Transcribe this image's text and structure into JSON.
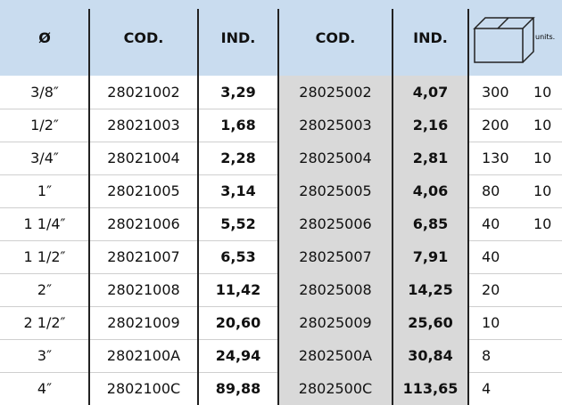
{
  "table": {
    "header": [
      "Ø",
      "COD.",
      "IND.",
      "COD.",
      "IND.",
      "units."
    ],
    "rows": [
      [
        "3/8″",
        "28021002",
        "3,29",
        "28025002",
        "4,07",
        "300",
        "10"
      ],
      [
        "1/2″",
        "28021003",
        "1,68",
        "28025003",
        "2,16",
        "200",
        "10"
      ],
      [
        "3/4″",
        "28021004",
        "2,28",
        "28025004",
        "2,81",
        "130",
        "10"
      ],
      [
        "1″",
        "28021005",
        "3,14",
        "28025005",
        "4,06",
        "80",
        "10"
      ],
      [
        "1 1/4″",
        "28021006",
        "5,52",
        "28025006",
        "6,85",
        "40",
        "10"
      ],
      [
        "1 1/2″",
        "28021007",
        "6,53",
        "28025007",
        "7,91",
        "40"
      ],
      [
        "2″",
        "28021008",
        "11,42",
        "28025008",
        "14,25",
        "20"
      ],
      [
        "2 1/2″",
        "28021009",
        "20,60",
        "28025009",
        "25,60",
        "10"
      ],
      [
        "3″",
        "2802100A",
        "24,94",
        "2802500A",
        "30,84",
        "8"
      ],
      [
        "4″",
        "2802100C",
        "89,88",
        "2802500C",
        "113,65",
        "4"
      ]
    ]
  }
}
